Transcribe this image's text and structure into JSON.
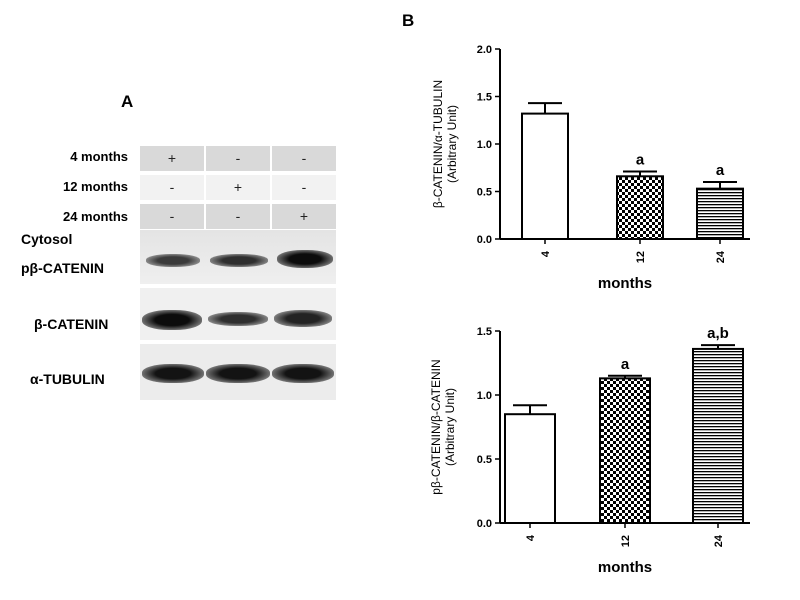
{
  "panel_a": {
    "letter": "A",
    "rows": [
      {
        "label": "4 months",
        "marks": [
          "+",
          "-",
          "-"
        ]
      },
      {
        "label": "12 months",
        "marks": [
          "-",
          "+",
          "-"
        ]
      },
      {
        "label": "24 months",
        "marks": [
          "-",
          "-",
          "+"
        ]
      }
    ],
    "fraction_label": "Cytosol",
    "bands": [
      {
        "label": "pβ-CATENIN",
        "intensity": [
          0.75,
          0.8,
          0.95
        ]
      },
      {
        "label": "β-CATENIN",
        "intensity": [
          0.95,
          0.8,
          0.85
        ]
      },
      {
        "label": "α-TUBULIN",
        "intensity": [
          0.92,
          0.92,
          0.92
        ]
      }
    ]
  },
  "panel_b": {
    "letter": "B"
  },
  "chart_data": [
    {
      "type": "bar",
      "title": "",
      "categories": [
        "4",
        "12",
        "24"
      ],
      "values": [
        1.32,
        0.66,
        0.53
      ],
      "errors": [
        0.11,
        0.05,
        0.07
      ],
      "annotations": [
        "",
        "a",
        "a"
      ],
      "patterns": [
        "none",
        "checker",
        "lines"
      ],
      "xlabel": "months",
      "ylabel": "β-CATENIN/α-TUBULIN",
      "ylabel2": "(Arbitrary Unit)",
      "ylim": [
        0,
        2.0
      ],
      "yticks": [
        "0.0",
        "0.5",
        "1.0",
        "1.5",
        "2.0"
      ],
      "grid": false
    },
    {
      "type": "bar",
      "title": "",
      "categories": [
        "4",
        "12",
        "24"
      ],
      "values": [
        0.85,
        1.13,
        1.36
      ],
      "errors": [
        0.07,
        0.02,
        0.03
      ],
      "annotations": [
        "",
        "a",
        "a,b"
      ],
      "patterns": [
        "none",
        "checker",
        "lines"
      ],
      "xlabel": "months",
      "ylabel": "pβ-CATENIN/β-CATENIN",
      "ylabel2": "(Arbitrary Unit)",
      "ylim": [
        0,
        1.5
      ],
      "yticks": [
        "0.0",
        "0.5",
        "1.0",
        "1.5"
      ],
      "grid": false
    }
  ]
}
